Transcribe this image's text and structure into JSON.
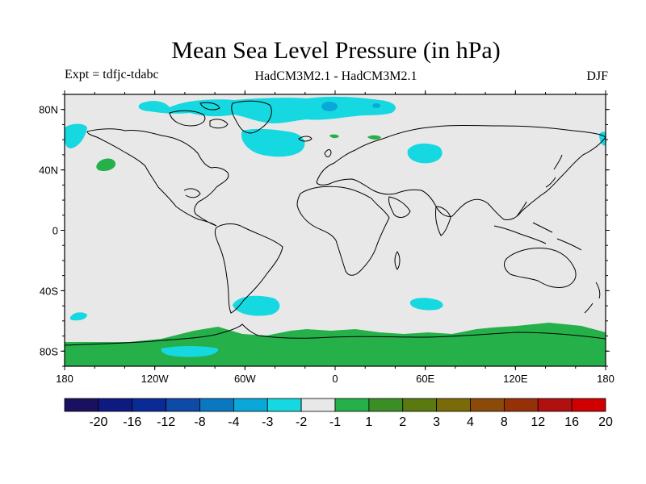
{
  "title": "Mean Sea Level Pressure (in hPa)",
  "left_string": "Expt = tdfjc-tdabc",
  "center_string": "HadCM3M2.1 - HadCM3M2.1",
  "right_string": "DJF",
  "lat_ticks": [
    "80N",
    "40N",
    "0",
    "40S",
    "80S"
  ],
  "lon_ticks": [
    "180",
    "120W",
    "60W",
    "0",
    "60E",
    "120E",
    "180"
  ],
  "colorbar": {
    "colors": [
      "#1a1060",
      "#0f1a80",
      "#0a2a95",
      "#0f4aa8",
      "#0a78c0",
      "#0aa8d8",
      "#15d8e0",
      "#e8e8e8",
      "#25b04a",
      "#3a8e25",
      "#5a7a10",
      "#7a6a08",
      "#8a4a08",
      "#963008",
      "#b01010",
      "#d00000"
    ],
    "labels": [
      "-20",
      "-16",
      "-12",
      "-8",
      "-4",
      "-3",
      "-2",
      "-1",
      "1",
      "2",
      "3",
      "4",
      "8",
      "12",
      "16",
      "20"
    ]
  },
  "colors": {
    "background_field": "#e8e8e8",
    "neg_light": "#15d8e0",
    "neg_mid": "#0aa8d8",
    "pos_light": "#25b04a",
    "coast": "#000000"
  }
}
